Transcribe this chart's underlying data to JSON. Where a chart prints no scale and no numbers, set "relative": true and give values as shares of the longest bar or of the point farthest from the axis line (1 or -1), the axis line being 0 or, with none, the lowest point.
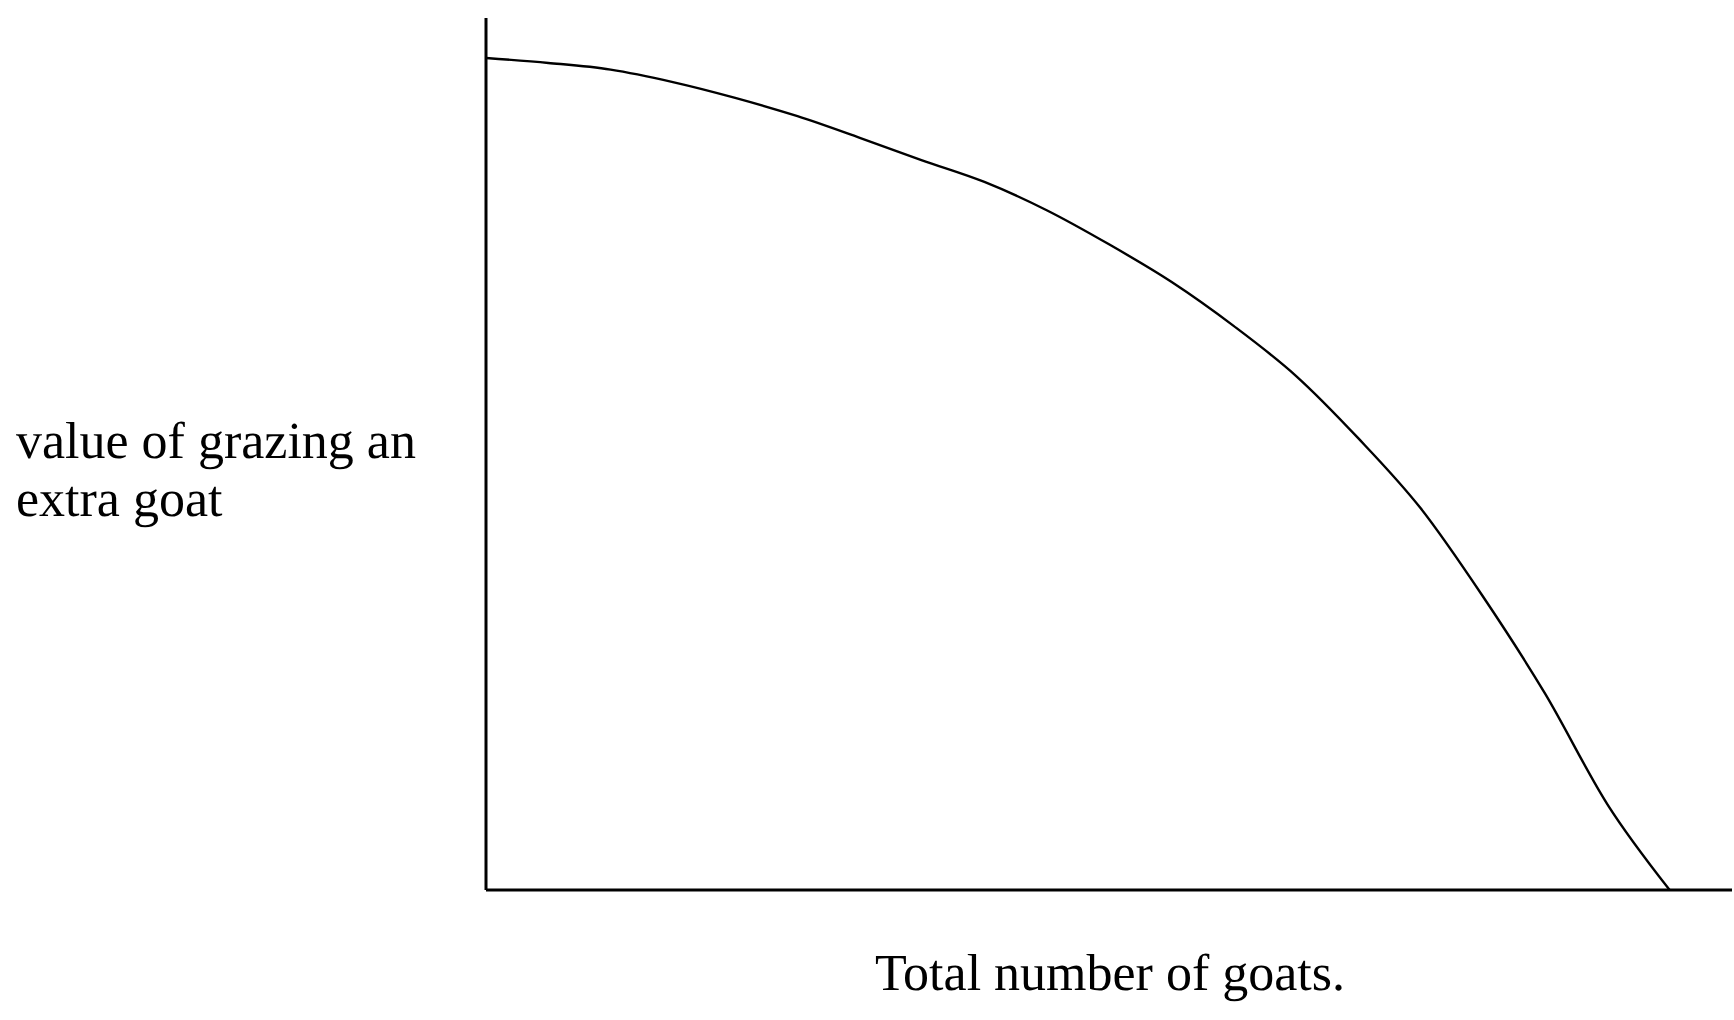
{
  "chart_data": {
    "type": "line",
    "relative": true,
    "xlabel": "Total number of goats.",
    "ylabel": "value of grazing an extra goat",
    "marker": "none",
    "categories": [
      null,
      null,
      null,
      null,
      null,
      null,
      null,
      null,
      null,
      null,
      null,
      null,
      null,
      null,
      null,
      null,
      null,
      null,
      null,
      null,
      null
    ],
    "series": [
      {
        "color": "#000000",
        "values": [
          1.0,
          0.994,
          0.986,
          0.971,
          0.952,
          0.93,
          0.904,
          0.877,
          0.851,
          0.817,
          0.776,
          0.731,
          0.678,
          0.618,
          0.543,
          0.459,
          0.353,
          0.236,
          0.103,
          0,
          null
        ]
      }
    ]
  }
}
